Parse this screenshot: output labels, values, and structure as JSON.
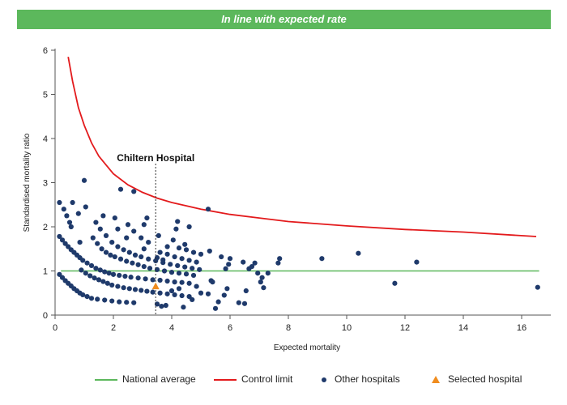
{
  "banner": {
    "text": "In line with expected rate",
    "color": "#5cb85c"
  },
  "colors": {
    "national": "#5cb85c",
    "control": "#e31a1c",
    "other": "#1f3a6b",
    "selected": "#f08c1e",
    "axis": "#555555"
  },
  "legend": {
    "national_average": "National average",
    "control_limit": "Control limit",
    "other_hospitals": "Other hospitals",
    "selected_hospital": "Selected hospital"
  },
  "chart_data": {
    "type": "scatter",
    "xlabel": "Expected mortality",
    "ylabel": "Standardised mortality ratio",
    "xlim": [
      0,
      17
    ],
    "ylim": [
      0,
      6
    ],
    "xticks": [
      0,
      2,
      4,
      6,
      8,
      10,
      12,
      14,
      16
    ],
    "yticks": [
      0,
      1,
      2,
      3,
      4,
      5,
      6
    ],
    "grid": false,
    "legend_position": "bottom",
    "national_average": 1,
    "control_limit": [
      [
        0.45,
        5.85
      ],
      [
        0.6,
        5.3
      ],
      [
        0.8,
        4.7
      ],
      [
        1.0,
        4.3
      ],
      [
        1.25,
        3.9
      ],
      [
        1.5,
        3.6
      ],
      [
        2.0,
        3.2
      ],
      [
        2.5,
        2.95
      ],
      [
        3.0,
        2.78
      ],
      [
        3.5,
        2.65
      ],
      [
        4.0,
        2.55
      ],
      [
        5.0,
        2.4
      ],
      [
        6.0,
        2.28
      ],
      [
        7.0,
        2.2
      ],
      [
        8.0,
        2.12
      ],
      [
        10.0,
        2.02
      ],
      [
        12.0,
        1.94
      ],
      [
        14.0,
        1.88
      ],
      [
        16.5,
        1.78
      ]
    ],
    "annotation": {
      "label": "Chiltern Hospital",
      "x": 3.45
    },
    "selected": [
      [
        3.45,
        0.65
      ]
    ],
    "other_hospitals": [
      [
        0.15,
        2.55
      ],
      [
        0.3,
        2.4
      ],
      [
        0.55,
        2.0
      ],
      [
        0.6,
        2.55
      ],
      [
        0.8,
        2.3
      ],
      [
        1.0,
        3.05
      ],
      [
        1.05,
        2.45
      ],
      [
        0.4,
        2.25
      ],
      [
        0.5,
        2.1
      ],
      [
        1.4,
        2.1
      ],
      [
        1.55,
        1.95
      ],
      [
        1.65,
        2.25
      ],
      [
        2.05,
        2.2
      ],
      [
        2.25,
        2.85
      ],
      [
        2.7,
        2.8
      ],
      [
        2.5,
        2.05
      ],
      [
        2.15,
        1.95
      ],
      [
        2.45,
        1.75
      ],
      [
        2.7,
        1.9
      ],
      [
        3.05,
        2.05
      ],
      [
        3.15,
        2.2
      ],
      [
        2.95,
        1.75
      ],
      [
        3.2,
        1.65
      ],
      [
        3.05,
        1.5
      ],
      [
        3.55,
        1.8
      ],
      [
        4.2,
        2.12
      ],
      [
        4.15,
        1.95
      ],
      [
        4.6,
        2.0
      ],
      [
        3.85,
        1.55
      ],
      [
        4.05,
        1.7
      ],
      [
        4.45,
        1.6
      ],
      [
        5.3,
        1.45
      ],
      [
        5.25,
        2.4
      ],
      [
        0.15,
        1.78
      ],
      [
        0.25,
        1.7
      ],
      [
        0.35,
        1.62
      ],
      [
        0.45,
        1.55
      ],
      [
        0.55,
        1.48
      ],
      [
        0.65,
        1.42
      ],
      [
        0.75,
        1.36
      ],
      [
        0.85,
        1.3
      ],
      [
        0.95,
        1.24
      ],
      [
        1.1,
        1.18
      ],
      [
        1.25,
        1.12
      ],
      [
        1.4,
        1.06
      ],
      [
        1.55,
        1.02
      ],
      [
        1.7,
        0.98
      ],
      [
        1.85,
        0.95
      ],
      [
        2.0,
        0.92
      ],
      [
        2.2,
        0.9
      ],
      [
        2.4,
        0.88
      ],
      [
        2.6,
        0.86
      ],
      [
        2.85,
        0.84
      ],
      [
        3.1,
        0.82
      ],
      [
        3.35,
        0.8
      ],
      [
        3.6,
        0.79
      ],
      [
        3.85,
        0.77
      ],
      [
        4.1,
        0.75
      ],
      [
        4.35,
        0.74
      ],
      [
        4.6,
        0.72
      ],
      [
        0.85,
        1.65
      ],
      [
        1.3,
        1.75
      ],
      [
        1.45,
        1.62
      ],
      [
        1.6,
        1.5
      ],
      [
        1.75,
        1.42
      ],
      [
        1.9,
        1.36
      ],
      [
        2.05,
        1.32
      ],
      [
        2.25,
        1.27
      ],
      [
        2.45,
        1.22
      ],
      [
        2.65,
        1.18
      ],
      [
        2.85,
        1.14
      ],
      [
        3.05,
        1.1
      ],
      [
        3.25,
        1.06
      ],
      [
        3.5,
        1.03
      ],
      [
        3.75,
        1.0
      ],
      [
        4.0,
        0.97
      ],
      [
        4.25,
        0.95
      ],
      [
        4.5,
        0.93
      ],
      [
        4.75,
        0.9
      ],
      [
        1.75,
        1.8
      ],
      [
        1.95,
        1.65
      ],
      [
        2.15,
        1.55
      ],
      [
        2.35,
        1.48
      ],
      [
        2.55,
        1.42
      ],
      [
        2.75,
        1.36
      ],
      [
        2.95,
        1.32
      ],
      [
        3.2,
        1.27
      ],
      [
        3.45,
        1.23
      ],
      [
        3.7,
        1.19
      ],
      [
        3.95,
        1.15
      ],
      [
        4.2,
        1.12
      ],
      [
        4.45,
        1.09
      ],
      [
        4.7,
        1.06
      ],
      [
        4.95,
        1.03
      ],
      [
        3.6,
        1.42
      ],
      [
        3.85,
        1.38
      ],
      [
        4.1,
        1.32
      ],
      [
        4.35,
        1.28
      ],
      [
        4.6,
        1.24
      ],
      [
        4.85,
        1.2
      ],
      [
        4.25,
        1.52
      ],
      [
        4.5,
        1.48
      ],
      [
        4.75,
        1.42
      ],
      [
        5.0,
        1.38
      ],
      [
        3.5,
        1.3
      ],
      [
        3.7,
        1.25
      ],
      [
        0.15,
        0.92
      ],
      [
        0.25,
        0.85
      ],
      [
        0.35,
        0.78
      ],
      [
        0.45,
        0.72
      ],
      [
        0.55,
        0.66
      ],
      [
        0.65,
        0.6
      ],
      [
        0.75,
        0.55
      ],
      [
        0.85,
        0.5
      ],
      [
        0.95,
        0.46
      ],
      [
        1.1,
        0.42
      ],
      [
        1.25,
        0.38
      ],
      [
        1.45,
        0.36
      ],
      [
        1.7,
        0.34
      ],
      [
        1.95,
        0.32
      ],
      [
        2.2,
        0.3
      ],
      [
        2.45,
        0.29
      ],
      [
        2.7,
        0.28
      ],
      [
        0.9,
        1.02
      ],
      [
        1.05,
        0.95
      ],
      [
        1.2,
        0.89
      ],
      [
        1.35,
        0.84
      ],
      [
        1.5,
        0.8
      ],
      [
        1.65,
        0.76
      ],
      [
        1.8,
        0.72
      ],
      [
        1.95,
        0.68
      ],
      [
        2.15,
        0.65
      ],
      [
        2.35,
        0.62
      ],
      [
        2.55,
        0.6
      ],
      [
        2.75,
        0.58
      ],
      [
        2.95,
        0.56
      ],
      [
        3.15,
        0.54
      ],
      [
        3.35,
        0.52
      ],
      [
        3.6,
        0.5
      ],
      [
        3.85,
        0.48
      ],
      [
        4.1,
        0.46
      ],
      [
        4.35,
        0.44
      ],
      [
        4.6,
        0.42
      ],
      [
        3.5,
        0.25
      ],
      [
        3.65,
        0.2
      ],
      [
        3.8,
        0.22
      ],
      [
        4.4,
        0.18
      ],
      [
        4.7,
        0.35
      ],
      [
        4.0,
        0.55
      ],
      [
        4.25,
        0.6
      ],
      [
        4.85,
        0.65
      ],
      [
        5.0,
        0.5
      ],
      [
        5.25,
        0.48
      ],
      [
        5.4,
        0.75
      ],
      [
        5.5,
        0.15
      ],
      [
        5.6,
        0.3
      ],
      [
        5.8,
        0.45
      ],
      [
        5.9,
        0.6
      ],
      [
        5.35,
        0.78
      ],
      [
        5.85,
        1.05
      ],
      [
        5.95,
        1.15
      ],
      [
        6.0,
        1.28
      ],
      [
        6.3,
        0.28
      ],
      [
        6.5,
        0.26
      ],
      [
        6.45,
        1.2
      ],
      [
        6.55,
        0.55
      ],
      [
        6.65,
        1.05
      ],
      [
        6.75,
        1.1
      ],
      [
        6.85,
        1.18
      ],
      [
        6.95,
        0.95
      ],
      [
        7.05,
        0.75
      ],
      [
        7.1,
        0.85
      ],
      [
        7.15,
        0.62
      ],
      [
        7.3,
        0.95
      ],
      [
        7.65,
        1.18
      ],
      [
        7.7,
        1.28
      ],
      [
        5.7,
        1.32
      ],
      [
        9.15,
        1.28
      ],
      [
        10.4,
        1.4
      ],
      [
        11.65,
        0.72
      ],
      [
        12.4,
        1.2
      ],
      [
        16.55,
        0.63
      ]
    ]
  }
}
